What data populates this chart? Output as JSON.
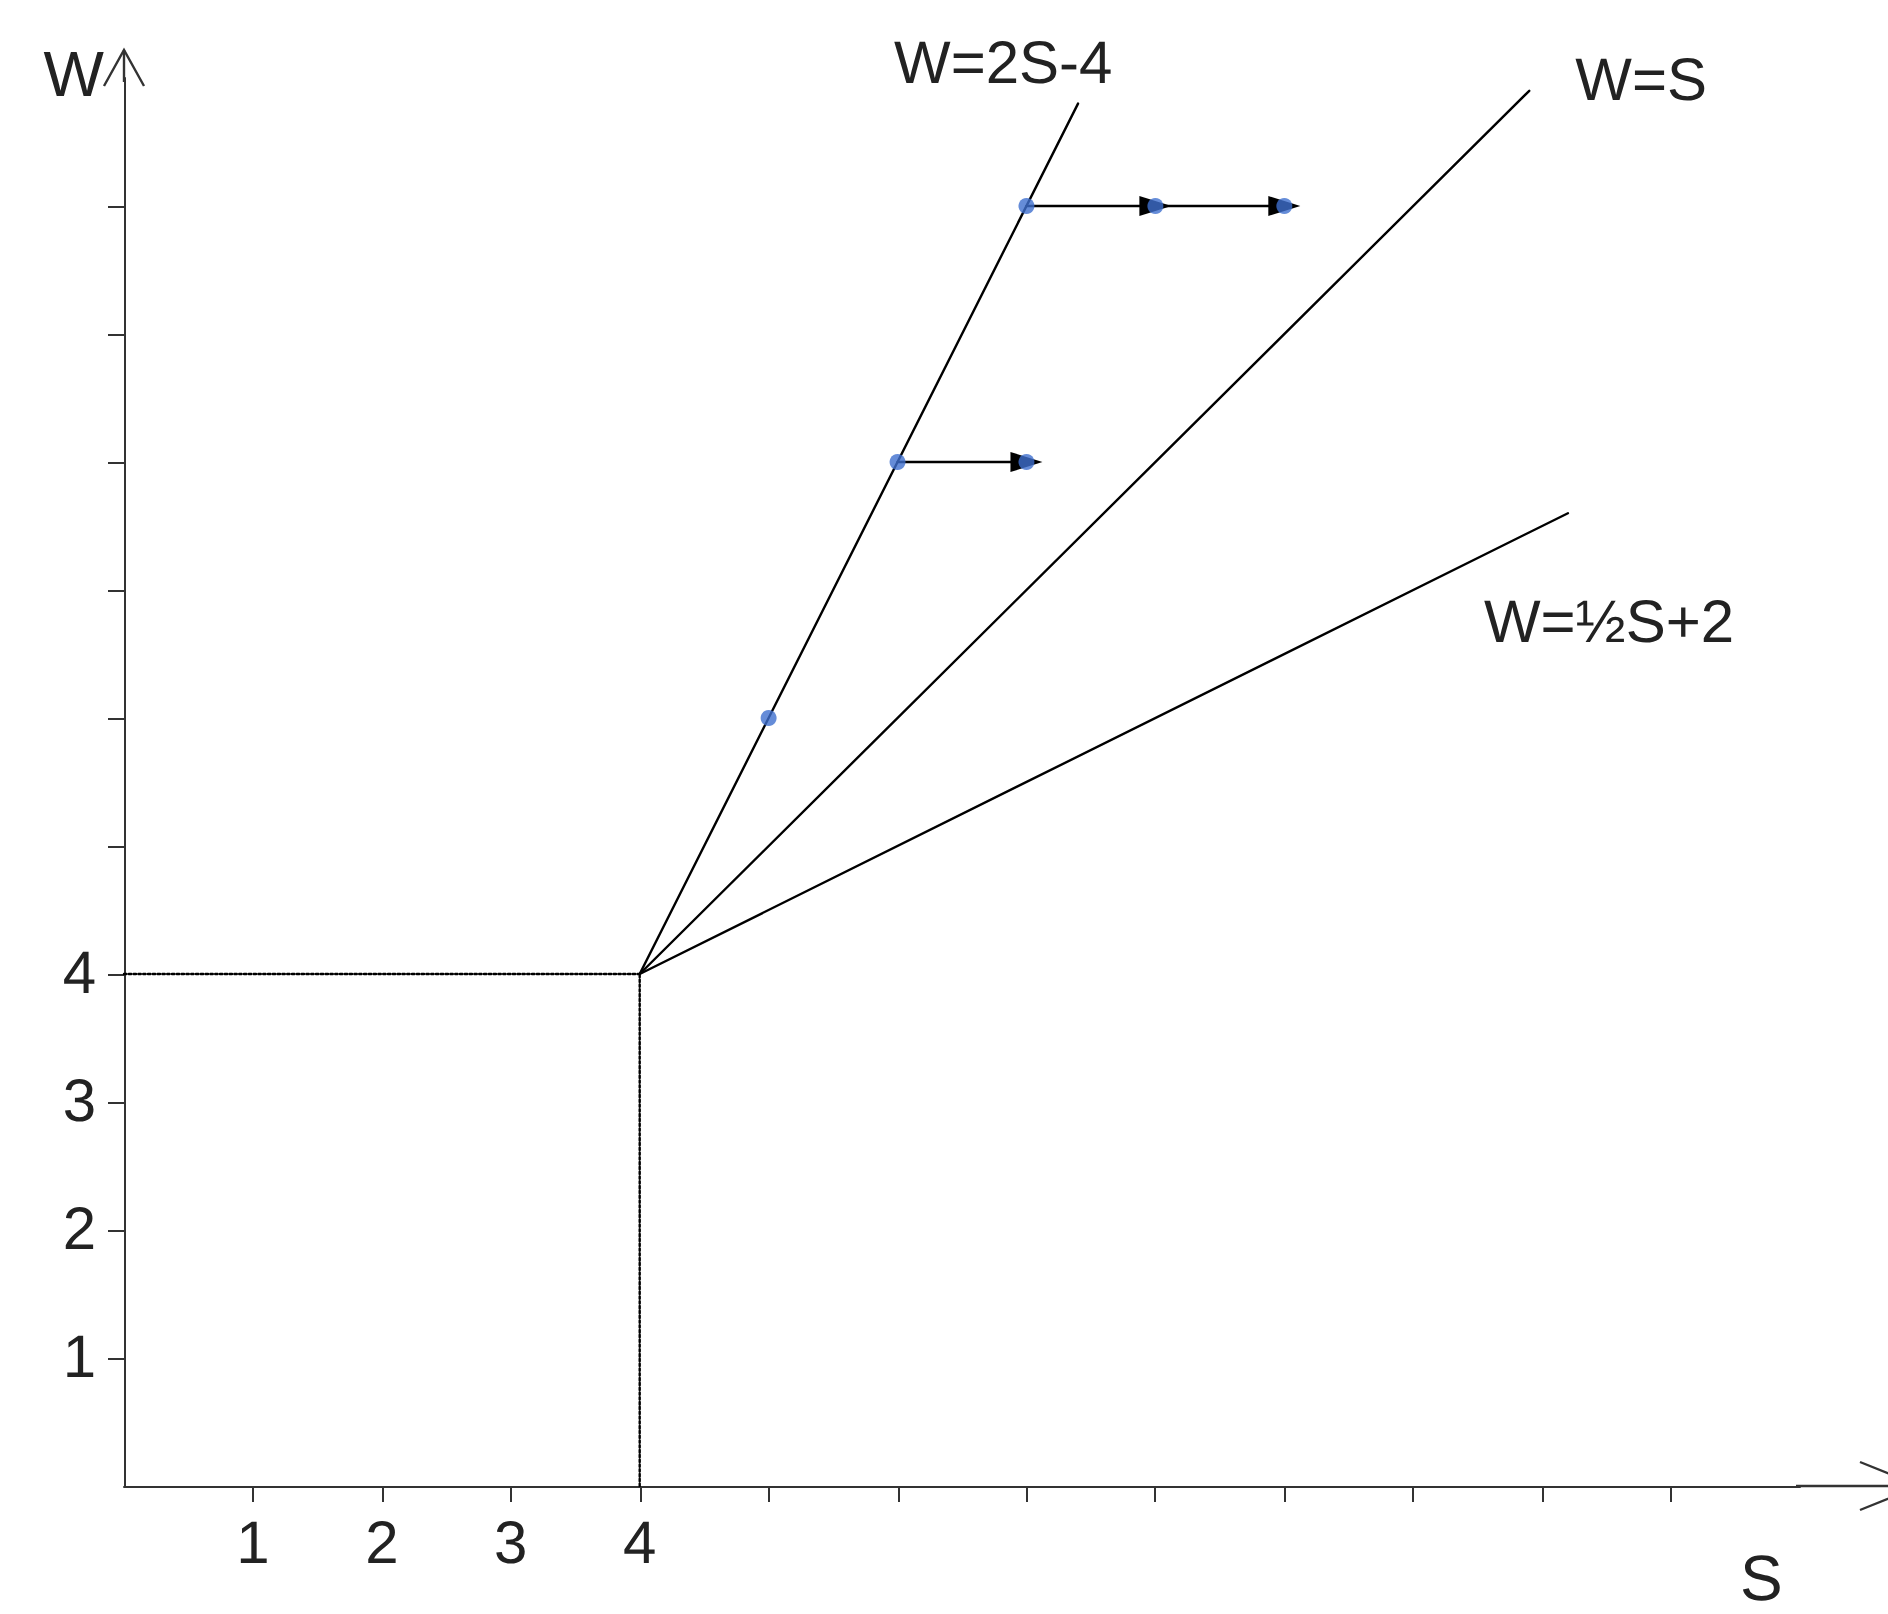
{
  "chart_data": {
    "type": "line",
    "xlabel": "S",
    "ylabel": "W",
    "xlim": [
      0,
      13
    ],
    "ylim": [
      0,
      11
    ],
    "xticks": [
      1,
      2,
      3,
      4,
      {
        "value": 5,
        "label": null
      },
      {
        "value": 6,
        "label": null
      },
      {
        "value": 7,
        "label": null
      },
      {
        "value": 8,
        "label": null
      },
      {
        "value": 9,
        "label": null
      },
      {
        "value": 10,
        "label": null
      },
      {
        "value": 11,
        "label": null
      },
      {
        "value": 12,
        "label": null
      }
    ],
    "yticks": [
      1,
      2,
      3,
      4,
      {
        "value": 5,
        "label": null
      },
      {
        "value": 6,
        "label": null
      },
      {
        "value": 7,
        "label": null
      },
      {
        "value": 8,
        "label": null
      },
      {
        "value": 9,
        "label": null
      },
      {
        "value": 10,
        "label": null
      }
    ],
    "grid": false,
    "legend": false,
    "series": [
      {
        "name": "W=2S-4",
        "color": "#000000",
        "x": [
          4,
          7.4
        ],
        "values": [
          4,
          10.8
        ],
        "marker": "none"
      },
      {
        "name": "W=S",
        "color": "#000000",
        "x": [
          4,
          10.9
        ],
        "values": [
          4,
          10.9
        ],
        "marker": "none"
      },
      {
        "name": "W=½S+2",
        "color": "#000000",
        "x": [
          4,
          11.2
        ],
        "values": [
          4,
          7.6
        ],
        "marker": "none"
      },
      {
        "color": "#000000",
        "x": [
          0,
          4
        ],
        "values": [
          4,
          4
        ],
        "marker": "none",
        "line_style": "dotted"
      },
      {
        "color": "#000000",
        "x": [
          4,
          4
        ],
        "values": [
          0,
          4
        ],
        "marker": "none",
        "line_style": "dotted"
      },
      {
        "color": "#000000",
        "x": [
          6,
          7,
          null,
          7,
          8,
          9
        ],
        "values": [
          8,
          8,
          null,
          10,
          10,
          10
        ],
        "marker": "triangle"
      },
      {
        "type": "scatter",
        "color": "#3f6fce",
        "x": [
          5,
          6,
          7,
          7,
          8,
          9
        ],
        "values": [
          6,
          8,
          8,
          10,
          10,
          10
        ],
        "marker": "circle"
      }
    ]
  }
}
